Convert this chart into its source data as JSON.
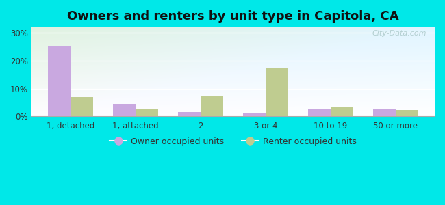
{
  "title": "Owners and renters by unit type in Capitola, CA",
  "categories": [
    "1, detached",
    "1, attached",
    "2",
    "3 or 4",
    "10 to 19",
    "50 or more"
  ],
  "owner_values": [
    25.5,
    4.5,
    1.5,
    1.2,
    2.5,
    2.5
  ],
  "renter_values": [
    7.0,
    2.5,
    7.5,
    17.5,
    3.5,
    2.2
  ],
  "owner_color": "#c9a8e0",
  "renter_color": "#bfcc90",
  "ylim": [
    0,
    32
  ],
  "yticks": [
    0,
    10,
    20,
    30
  ],
  "ytick_labels": [
    "0%",
    "10%",
    "20%",
    "30%"
  ],
  "bar_width": 0.35,
  "outer_bg": "#00e8e8",
  "legend_owner": "Owner occupied units",
  "legend_renter": "Renter occupied units",
  "watermark": "City-Data.com",
  "title_fontsize": 13,
  "tick_fontsize": 8.5
}
